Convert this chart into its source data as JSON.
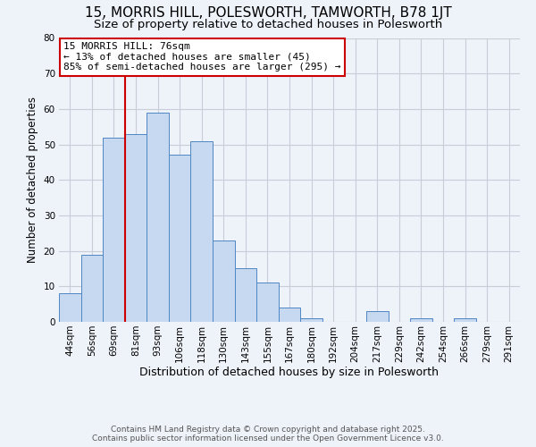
{
  "title": "15, MORRIS HILL, POLESWORTH, TAMWORTH, B78 1JT",
  "subtitle": "Size of property relative to detached houses in Polesworth",
  "xlabel": "Distribution of detached houses by size in Polesworth",
  "ylabel": "Number of detached properties",
  "bar_labels": [
    "44sqm",
    "56sqm",
    "69sqm",
    "81sqm",
    "93sqm",
    "106sqm",
    "118sqm",
    "130sqm",
    "143sqm",
    "155sqm",
    "167sqm",
    "180sqm",
    "192sqm",
    "204sqm",
    "217sqm",
    "229sqm",
    "242sqm",
    "254sqm",
    "266sqm",
    "279sqm",
    "291sqm"
  ],
  "bar_values": [
    8,
    19,
    52,
    53,
    59,
    47,
    51,
    23,
    15,
    11,
    4,
    1,
    0,
    0,
    3,
    0,
    1,
    0,
    1,
    0,
    0
  ],
  "bar_color": "#c6d9f1",
  "bar_edge_color": "#4e87c4",
  "ylim": [
    0,
    80
  ],
  "yticks": [
    0,
    10,
    20,
    30,
    40,
    50,
    60,
    70,
    80
  ],
  "grid_color": "#c8cdd8",
  "bg_color": "#eef2f9",
  "vline_pos": 2.5,
  "vline_color": "#cc0000",
  "annotation_title": "15 MORRIS HILL: 76sqm",
  "annotation_line1": "← 13% of detached houses are smaller (45)",
  "annotation_line2": "85% of semi-detached houses are larger (295) →",
  "annotation_box_color": "#ffffff",
  "annotation_box_edge": "#cc0000",
  "footer1": "Contains HM Land Registry data © Crown copyright and database right 2025.",
  "footer2": "Contains public sector information licensed under the Open Government Licence v3.0.",
  "title_fontsize": 11,
  "subtitle_fontsize": 9.5,
  "xlabel_fontsize": 9,
  "ylabel_fontsize": 8.5,
  "tick_fontsize": 7.5,
  "annotation_fontsize": 8,
  "footer_fontsize": 6.5
}
